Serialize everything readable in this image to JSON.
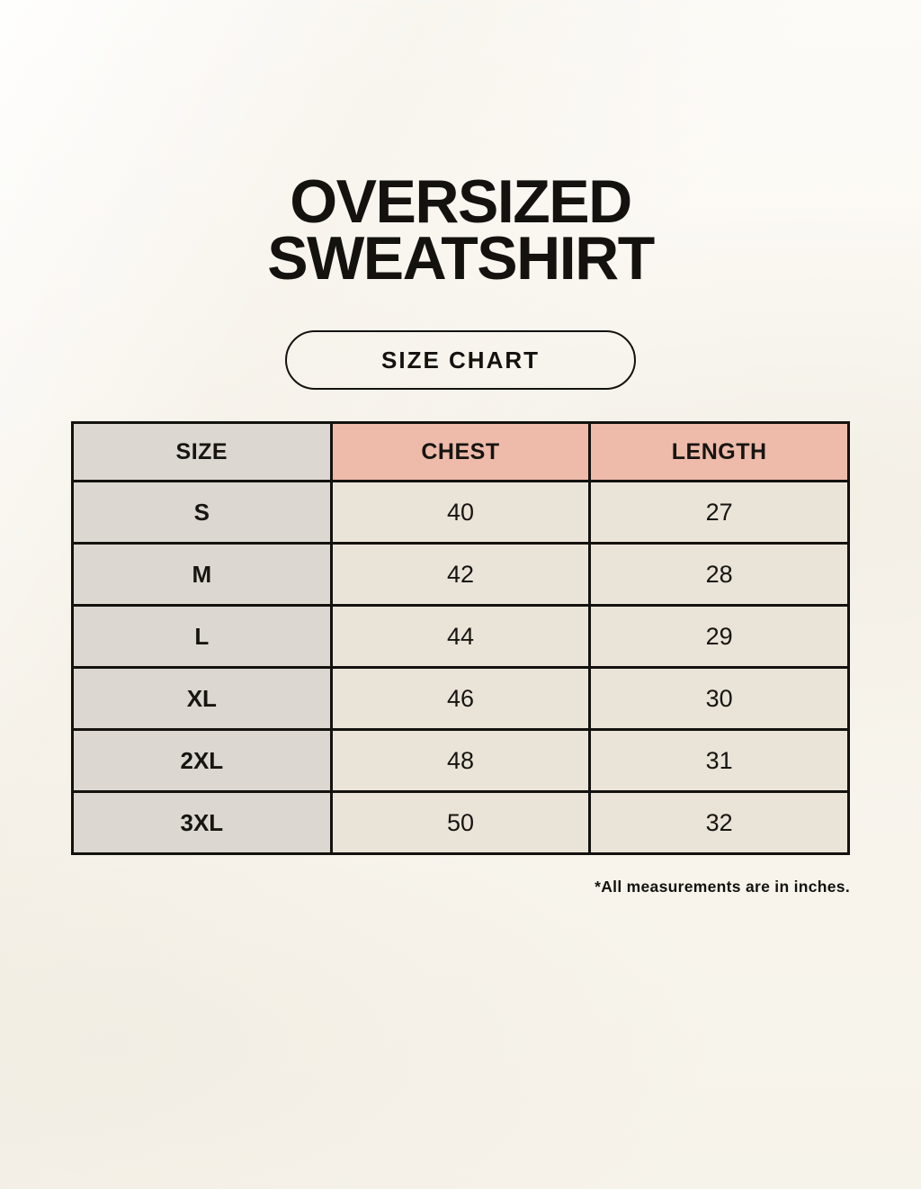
{
  "header": {
    "title_line1": "OVERSIZED",
    "title_line2": "SWEATSHIRT",
    "badge_label": "SIZE CHART"
  },
  "chart_data": {
    "type": "table",
    "title": "Oversized Sweatshirt Size Chart",
    "columns": [
      "SIZE",
      "CHEST",
      "LENGTH"
    ],
    "rows": [
      [
        "S",
        "40",
        "27"
      ],
      [
        "M",
        "42",
        "28"
      ],
      [
        "L",
        "44",
        "29"
      ],
      [
        "XL",
        "46",
        "30"
      ],
      [
        "2XL",
        "48",
        "31"
      ],
      [
        "3XL",
        "50",
        "32"
      ]
    ],
    "units": "inches"
  },
  "footnote": {
    "text": "*All measurements are in inches."
  },
  "colors": {
    "background": "#faf7f0",
    "accent_header": "#eebaaa",
    "size_column": "#ddd7d1",
    "data_cell": "#eae4d8",
    "border": "#14120f",
    "text": "#14120f"
  }
}
